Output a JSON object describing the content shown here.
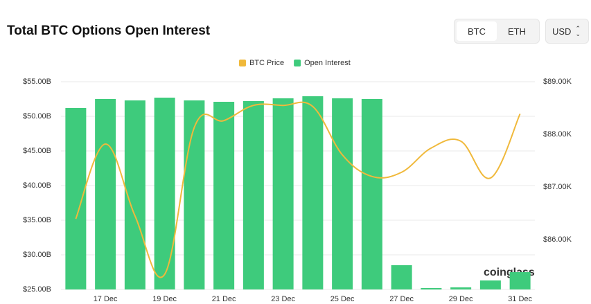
{
  "header": {
    "title": "Total BTC Options Open Interest",
    "tabs": [
      "BTC",
      "ETH"
    ],
    "currency": "USD"
  },
  "chart_data": {
    "type": "bar",
    "categories": [
      null,
      "17 Dec",
      null,
      "19 Dec",
      null,
      "21 Dec",
      null,
      "23 Dec",
      null,
      "25 Dec",
      null,
      "27 Dec",
      null,
      "29 Dec",
      null,
      "31 Dec"
    ],
    "series": [
      {
        "name": "Open Interest",
        "type": "bar",
        "color": "#3ecb7c",
        "values": [
          51.2,
          52.5,
          52.3,
          52.7,
          52.3,
          52.1,
          52.2,
          52.6,
          52.9,
          52.6,
          52.5,
          28.5,
          25.2,
          25.3,
          26.3,
          27.5
        ]
      },
      {
        "name": "BTC Price",
        "type": "line",
        "axis": "y2",
        "color": "#f0b93b",
        "values": [
          86395,
          87816,
          86450,
          85340,
          88130,
          88260,
          88550,
          88550,
          88530,
          87610,
          87200,
          87280,
          87740,
          87870,
          87170,
          88390
        ]
      }
    ],
    "ylim": [
      25,
      55
    ],
    "yticks": [
      {
        "value": 25,
        "label": "$25.00B"
      },
      {
        "value": 30,
        "label": "$30.00B"
      },
      {
        "value": 35,
        "label": "$35.00B"
      },
      {
        "value": 40,
        "label": "$40.00B"
      },
      {
        "value": 45,
        "label": "$45.00B"
      },
      {
        "value": 50,
        "label": "$50.00B"
      },
      {
        "value": 55,
        "label": "$55.00B"
      }
    ],
    "y2lim": [
      85053,
      89000
    ],
    "y2ticks": [
      {
        "value": 86000,
        "label": "$86.00K"
      },
      {
        "value": 87000,
        "label": "$87.00K"
      },
      {
        "value": 88000,
        "label": "$88.00K"
      },
      {
        "value": 89000,
        "label": "$89.00K"
      }
    ],
    "grid": true,
    "legend": "top",
    "watermark": "coinglass"
  }
}
